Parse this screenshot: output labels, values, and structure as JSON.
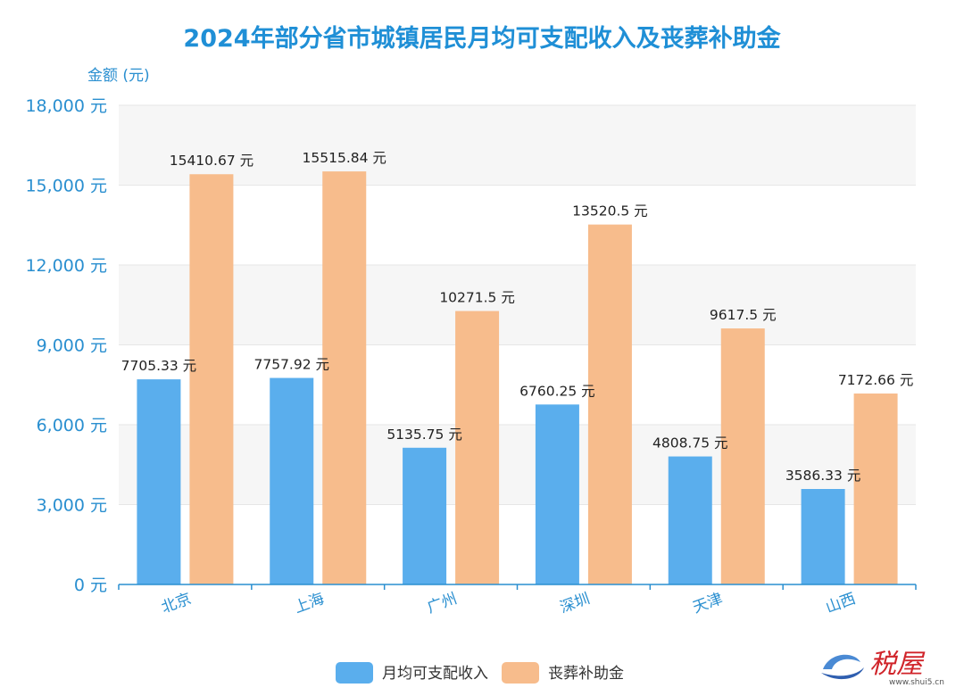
{
  "chart_data": {
    "type": "bar",
    "title": "2024年部分省市城镇居民月均可支配收入及丧葬补助金",
    "ylabel": "金额 (元)",
    "xlabel": "",
    "categories": [
      "北京",
      "上海",
      "广州",
      "深圳",
      "天津",
      "山西"
    ],
    "series": [
      {
        "name": "月均可支配收入",
        "color": "#5aaeed",
        "values": [
          7705.33,
          7757.92,
          5135.75,
          6760.25,
          4808.75,
          3586.33
        ],
        "labels": [
          "7705.33 元",
          "7757.92 元",
          "5135.75 元",
          "6760.25 元",
          "4808.75 元",
          "3586.33 元"
        ]
      },
      {
        "name": "丧葬补助金",
        "color": "#f7bc8c",
        "values": [
          15410.67,
          15515.84,
          10271.5,
          13520.5,
          9617.5,
          7172.66
        ],
        "labels": [
          "15410.67 元",
          "15515.84 元",
          "10271.5 元",
          "13520.5 元",
          "9617.5 元",
          "7172.66 元"
        ]
      }
    ],
    "ylim": [
      0,
      18000
    ],
    "yticks": [
      0,
      3000,
      6000,
      9000,
      12000,
      15000,
      18000
    ],
    "ytick_labels": [
      "0 元",
      "3,000 元",
      "6,000 元",
      "9,000 元",
      "12,000 元",
      "15,000 元",
      "18,000 元"
    ],
    "grid": true,
    "legend": "bottom-center",
    "colors": {
      "title": "#1f8fd6",
      "axis": "#2a8fd0"
    }
  },
  "watermark": {
    "text": "税屋",
    "site": "www.shui5.cn"
  }
}
